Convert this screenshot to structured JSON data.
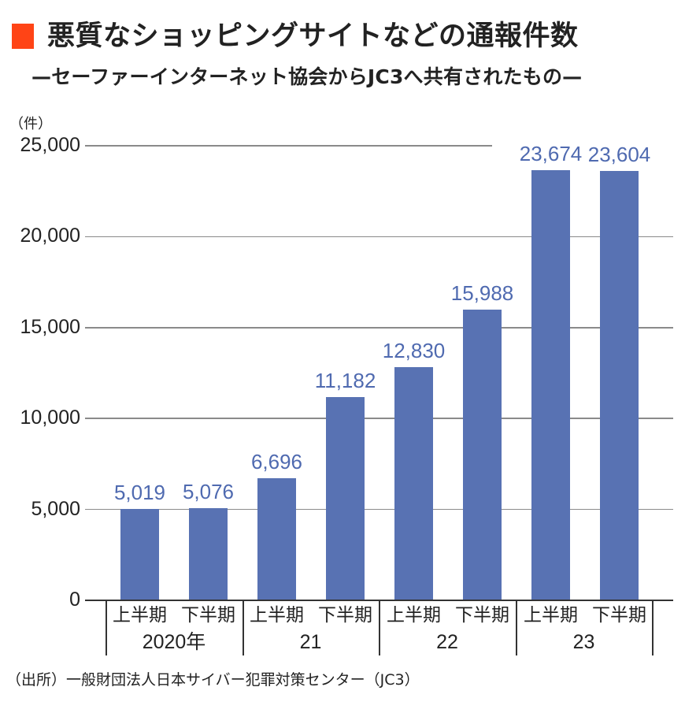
{
  "header": {
    "title": "悪質なショッピングサイトなどの通報件数",
    "subtitle": "—セーファーインターネット協会からJC3へ共有されたもの—",
    "accent_color": "#FF4416"
  },
  "axis": {
    "unit_label": "（件）",
    "ticks": [
      "25,000",
      "20,000",
      "15,000",
      "10,000",
      "5,000",
      "0"
    ]
  },
  "bars": [
    {
      "value": 5019,
      "label": "5,019",
      "period": "上半期"
    },
    {
      "value": 5076,
      "label": "5,076",
      "period": "下半期"
    },
    {
      "value": 6696,
      "label": "6,696",
      "period": "上半期"
    },
    {
      "value": 11182,
      "label": "11,182",
      "period": "下半期"
    },
    {
      "value": 12830,
      "label": "12,830",
      "period": "上半期"
    },
    {
      "value": 15988,
      "label": "15,988",
      "period": "下半期"
    },
    {
      "value": 23674,
      "label": "23,674",
      "period": "上半期"
    },
    {
      "value": 23604,
      "label": "23,604",
      "period": "下半期"
    }
  ],
  "years": [
    "2020年",
    "21",
    "22",
    "23"
  ],
  "source": "（出所）一般財団法人日本サイバー犯罪対策センター（JC3）",
  "colors": {
    "bar": "#5872B3",
    "bar_label": "#4F6AB0",
    "gridline": "#8A8A8A",
    "text": "#222222"
  },
  "chart_data": {
    "type": "bar",
    "title": "悪質なショッピングサイトなどの通報件数",
    "subtitle": "セーファーインターネット協会からJC3へ共有されたもの",
    "categories": [
      "2020年 上半期",
      "2020年 下半期",
      "21 上半期",
      "21 下半期",
      "22 上半期",
      "22 下半期",
      "23 上半期",
      "23 下半期"
    ],
    "values": [
      5019,
      5076,
      6696,
      11182,
      12830,
      15988,
      23674,
      23604
    ],
    "xlabel": "",
    "ylabel": "（件）",
    "ylim": [
      0,
      25000
    ],
    "yticks": [
      0,
      5000,
      10000,
      15000,
      20000,
      25000
    ],
    "grid": true,
    "legend": null,
    "data_labels": true,
    "source": "（出所）一般財団法人日本サイバー犯罪対策センター（JC3）"
  }
}
